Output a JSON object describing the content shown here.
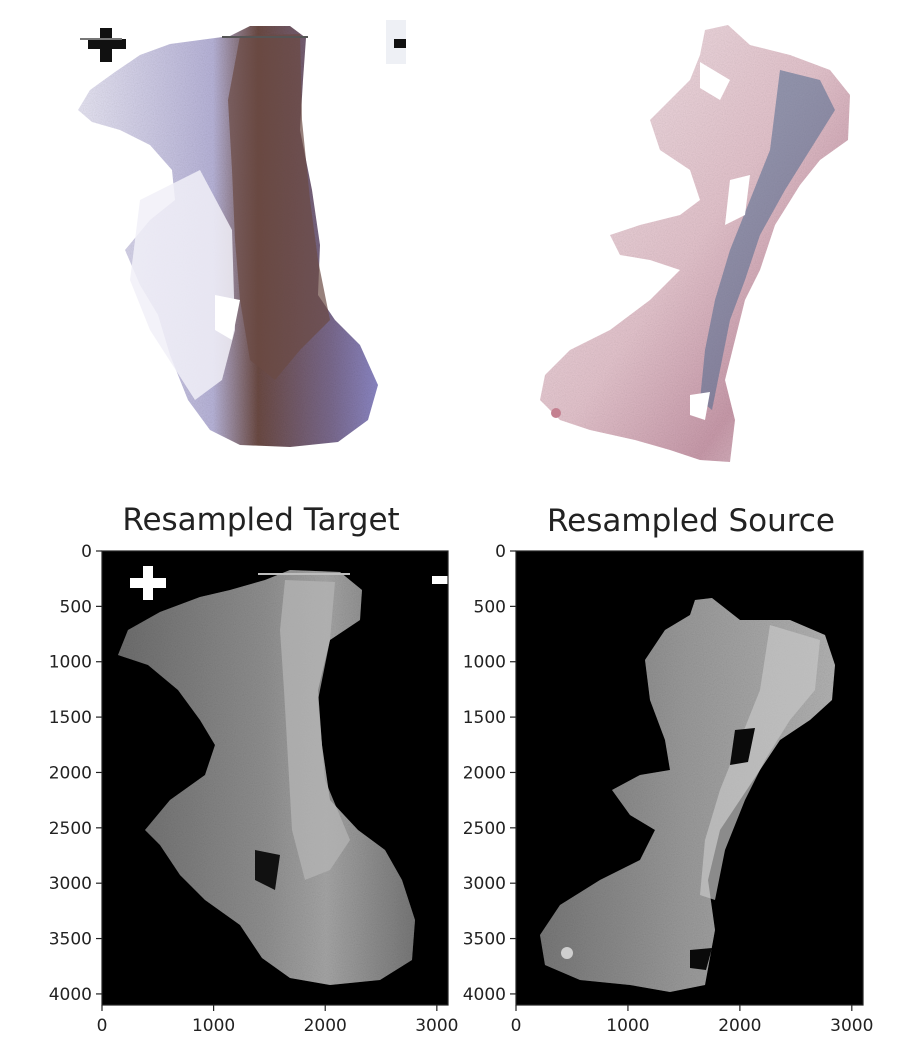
{
  "colors": {
    "he_stain": "#8a3c63",
    "ihc_stain": "#4b3f8f",
    "counterstain_pink": "#d9a6b3",
    "dab_brown": "#6b4a43",
    "grayscale_tissue": "#8a8a8a",
    "background_black": "#000000",
    "axis": "#222222"
  },
  "chart_data": [
    {
      "type": "image",
      "panel": "top-left",
      "title": "",
      "stain": "IHC (hematoxylin + DAB)",
      "axes": "off"
    },
    {
      "type": "image",
      "panel": "top-right",
      "title": "",
      "stain": "H&E",
      "axes": "off"
    },
    {
      "type": "image",
      "panel": "bottom-left",
      "title": "Resampled Target",
      "colormap": "gray",
      "xlim": [
        0,
        3100
      ],
      "ylim": [
        4100,
        0
      ],
      "x_ticks": [
        0,
        1000,
        2000,
        3000
      ],
      "y_ticks": [
        0,
        500,
        1000,
        1500,
        2000,
        2500,
        3000,
        3500,
        4000
      ],
      "x_tick_labels": [
        "0",
        "1000",
        "2000",
        "3000"
      ],
      "y_tick_labels": [
        "0",
        "500",
        "1000",
        "1500",
        "2000",
        "2500",
        "3000",
        "3500",
        "4000"
      ]
    },
    {
      "type": "image",
      "panel": "bottom-right",
      "title": "Resampled Source",
      "colormap": "gray",
      "xlim": [
        0,
        3100
      ],
      "ylim": [
        4100,
        0
      ],
      "x_ticks": [
        0,
        1000,
        2000,
        3000
      ],
      "y_ticks": [
        0,
        500,
        1000,
        1500,
        2000,
        2500,
        3000,
        3500,
        4000
      ],
      "x_tick_labels": [
        "0",
        "1000",
        "2000",
        "3000"
      ],
      "y_tick_labels": [
        "0",
        "500",
        "1000",
        "1500",
        "2000",
        "2500",
        "3000",
        "3500",
        "4000"
      ]
    }
  ]
}
